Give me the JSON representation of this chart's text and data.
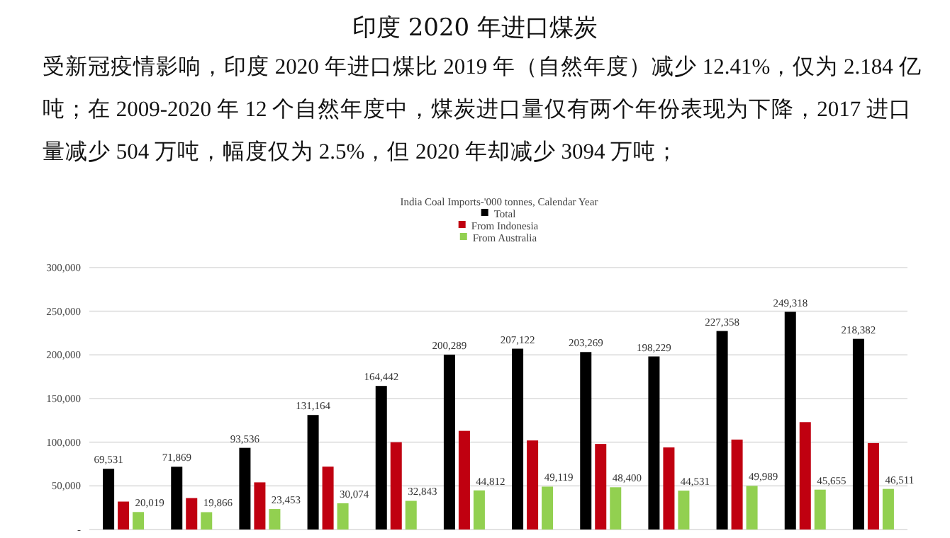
{
  "chart_data": {
    "type": "bar",
    "title": "印度 2020 年进口煤炭",
    "subtitle": "受新冠疫情影响，印度 2020 年进口煤比 2019 年（自然年度）减少 12.41%，仅为 2.184 亿吨；在 2009-2020 年 12 个自然年度中，煤炭进口量仅有两个年份表现为下降，2017 进口量减少 504 万吨，幅度仅为 2.5%，但 2020 年却减少 3094 万吨；",
    "annotations": [
      "India Coal Imports-'000 tonnes, Calendar Year"
    ],
    "categories": [
      null,
      null,
      null,
      null,
      null,
      null,
      null,
      null,
      null,
      null,
      null,
      null
    ],
    "series": [
      {
        "name": "Total",
        "color": "#000000",
        "values": [
          69531,
          71869,
          93536,
          131164,
          164442,
          200289,
          207122,
          203269,
          198229,
          227358,
          249318,
          218382
        ],
        "value_labels": [
          "69,531",
          "71,869",
          "93,536",
          "131,164",
          "164,442",
          "200,289",
          "207,122",
          "203,269",
          "198,229",
          "227,358",
          "249,318",
          "218,382"
        ]
      },
      {
        "name": "From Indonesia",
        "color": "#c00010",
        "values": [
          32000,
          36000,
          54000,
          72000,
          100000,
          113000,
          102000,
          98000,
          94000,
          103000,
          123000,
          99000
        ]
      },
      {
        "name": "From Australia",
        "color": "#92d050",
        "values": [
          20019,
          19866,
          23453,
          30074,
          32843,
          44812,
          49119,
          48400,
          44531,
          49989,
          45655,
          46511
        ],
        "value_labels": [
          "20,019",
          "19,866",
          "23,453",
          "30,074",
          "32,843",
          "44,812",
          "49,119",
          "48,400",
          "44,531",
          "49,989",
          "45,655",
          "46,511"
        ]
      }
    ],
    "ylim": [
      0,
      300000
    ],
    "yticks": [
      {
        "value": 0,
        "label": "-"
      },
      {
        "value": 50000,
        "label": "50,000"
      },
      {
        "value": 100000,
        "label": "100,000"
      },
      {
        "value": 150000,
        "label": "150,000"
      },
      {
        "value": 200000,
        "label": "200,000"
      },
      {
        "value": 250000,
        "label": "250,000"
      },
      {
        "value": 300000,
        "label": "300,000"
      }
    ],
    "grid": "y",
    "legend": "top"
  }
}
